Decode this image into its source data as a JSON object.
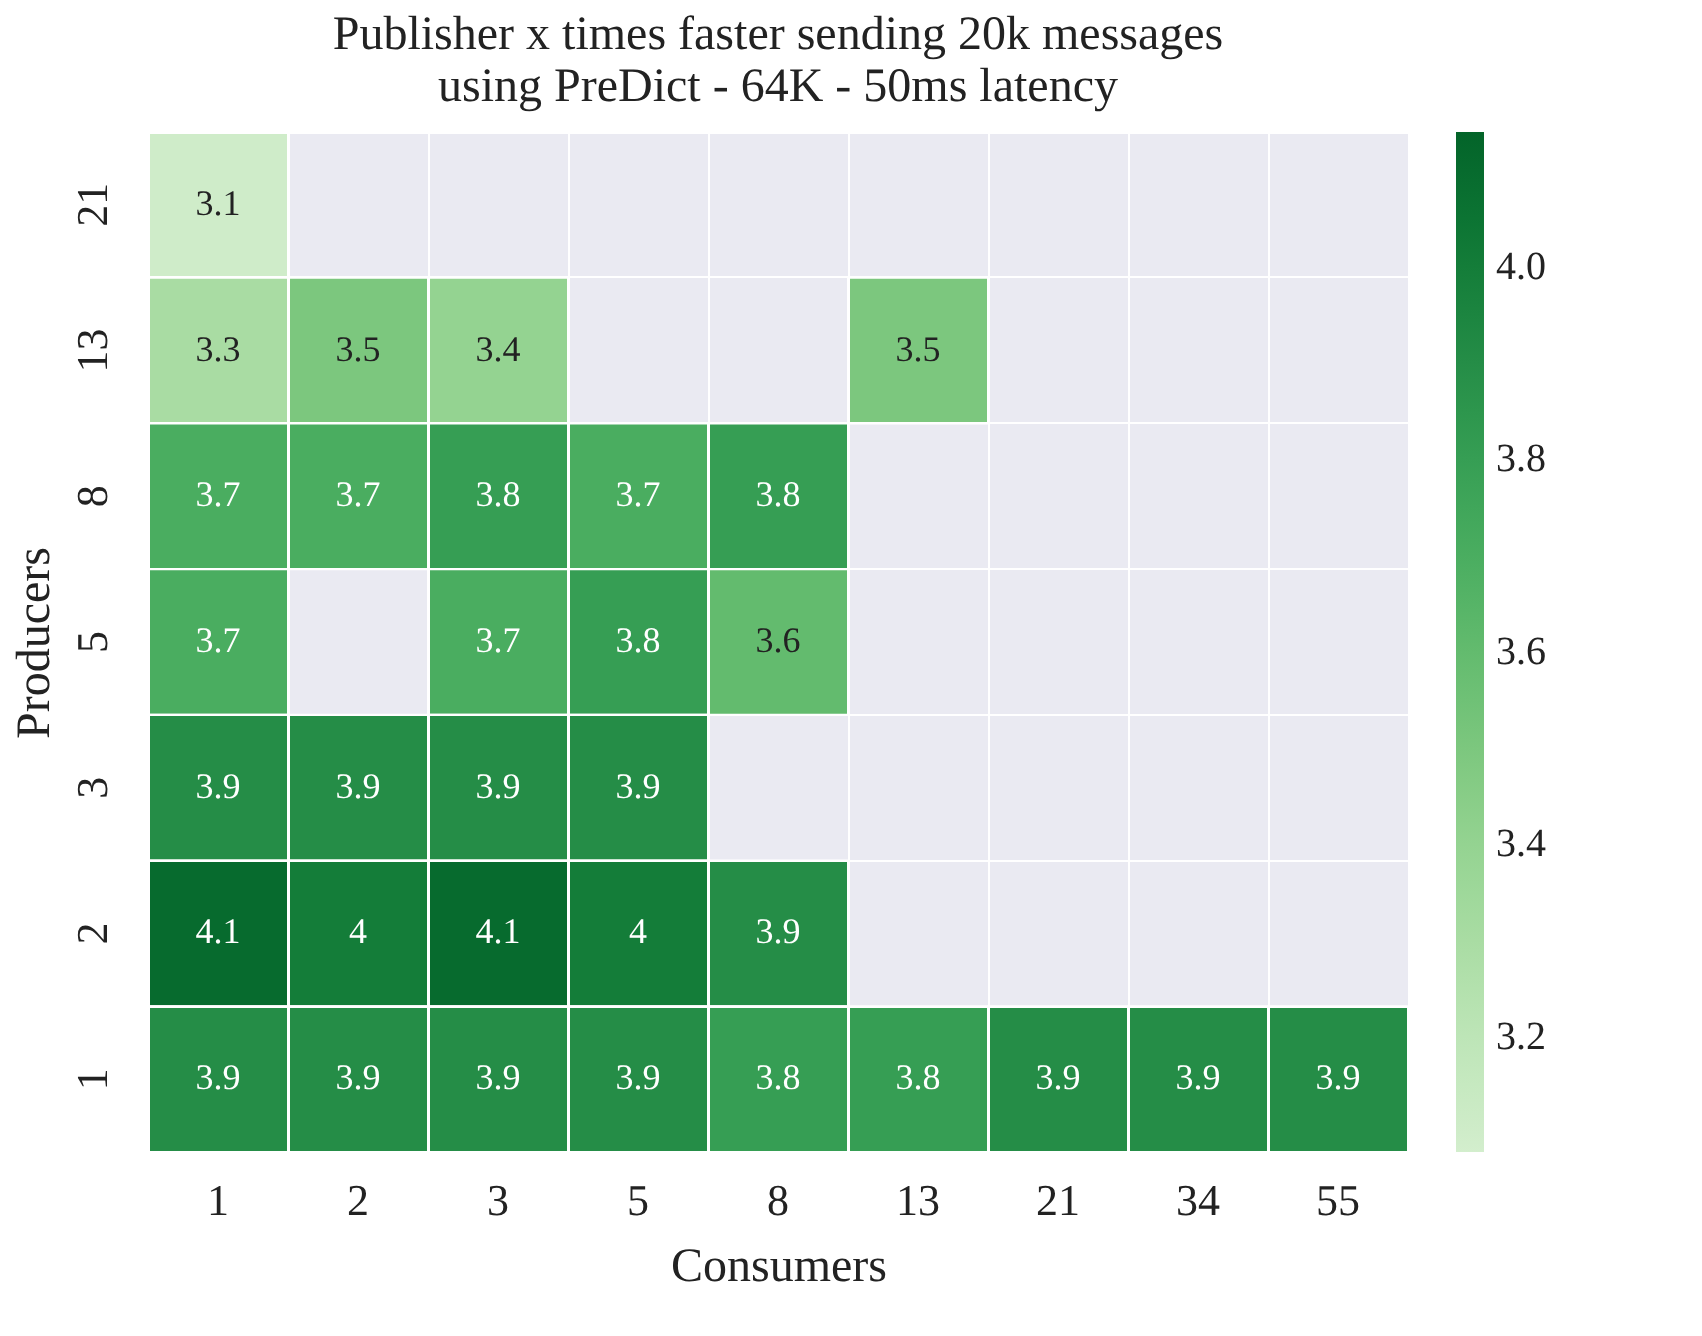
{
  "chart_data": {
    "type": "heatmap",
    "title": "Publisher x times faster sending 20k messages",
    "subtitle": "using PreDict - 64K - 50ms latency",
    "xlabel": "Consumers",
    "ylabel": "Producers",
    "categories": [
      "1",
      "2",
      "3",
      "5",
      "8",
      "13",
      "21",
      "34",
      "55"
    ],
    "y_categories": [
      "21",
      "13",
      "8",
      "5",
      "3",
      "2",
      "1"
    ],
    "cells": [
      [
        3.1,
        null,
        null,
        null,
        null,
        null,
        null,
        null,
        null
      ],
      [
        3.3,
        3.5,
        3.4,
        null,
        null,
        3.5,
        null,
        null,
        null
      ],
      [
        3.7,
        3.7,
        3.8,
        3.7,
        3.8,
        null,
        null,
        null,
        null
      ],
      [
        3.7,
        null,
        3.7,
        3.8,
        3.6,
        null,
        null,
        null,
        null
      ],
      [
        3.9,
        3.9,
        3.9,
        3.9,
        null,
        null,
        null,
        null,
        null
      ],
      [
        4.1,
        4,
        4.1,
        4,
        3.9,
        null,
        null,
        null,
        null
      ],
      [
        3.9,
        3.9,
        3.9,
        3.9,
        3.8,
        3.8,
        3.9,
        3.9,
        3.9
      ]
    ],
    "clim": [
      3.08,
      4.14
    ],
    "cticks": [
      3.2,
      3.4,
      3.6,
      3.8,
      {
        "value": 4,
        "label": "4.0"
      }
    ],
    "data_labels": true,
    "grid": true
  }
}
